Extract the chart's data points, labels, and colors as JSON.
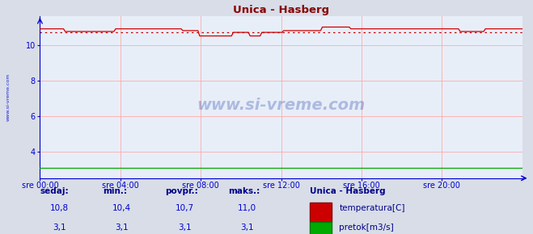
{
  "title": "Unica - Hasberg",
  "bg_color": "#d8dde8",
  "plot_bg_color": "#e8eef8",
  "grid_color": "#ffaaaa",
  "title_color": "#880000",
  "axis_color": "#0000cc",
  "tick_color": "#0000cc",
  "ylim": [
    2.5,
    11.6
  ],
  "yticks": [
    4,
    6,
    8,
    10
  ],
  "xlabel_ticks": [
    "sre 00:00",
    "sre 04:00",
    "sre 08:00",
    "sre 12:00",
    "sre 16:00",
    "sre 20:00"
  ],
  "temp_color": "#cc0000",
  "flow_color": "#00aa00",
  "avg_line_color": "#cc0000",
  "avg_value": 10.7,
  "flow_value": 3.1,
  "watermark": "www.si-vreme.com",
  "watermark_color": "#2244aa",
  "legend_title": "Unica - Hasberg",
  "legend_title_color": "#000088",
  "legend_label_color": "#000088",
  "footer_label_color": "#0000cc",
  "footer_bold_color": "#000088",
  "sedaj": [
    10.8,
    3.1
  ],
  "min_vals": [
    10.4,
    3.1
  ],
  "povpr_vals": [
    10.7,
    3.1
  ],
  "maks_vals": [
    11.0,
    3.1
  ],
  "left_label": "www.si-vreme.com"
}
